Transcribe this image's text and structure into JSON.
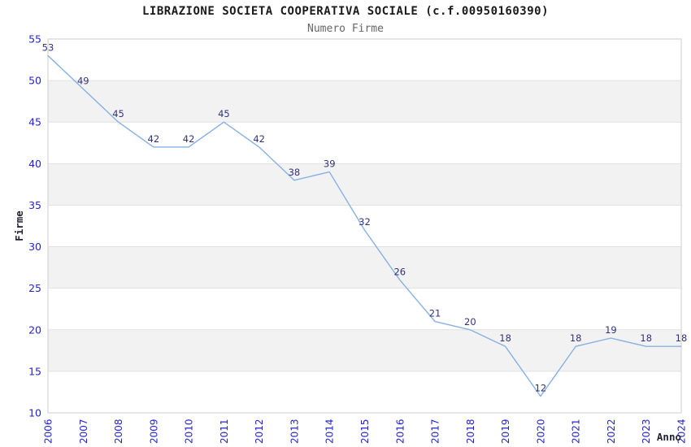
{
  "chart": {
    "title": "LIBRAZIONE SOCIETA COOPERATIVA SOCIALE (c.f.00950160390)",
    "subtitle": "Numero Firme",
    "x_axis_label": "Anno",
    "y_axis_label": "Firme"
  },
  "chart_data": {
    "type": "line",
    "title": "LIBRAZIONE SOCIETA COOPERATIVA SOCIALE (c.f.00950160390)",
    "subtitle": "Numero Firme",
    "xlabel": "Anno",
    "ylabel": "Firme",
    "categories": [
      "2006",
      "2007",
      "2008",
      "2009",
      "2010",
      "2011",
      "2012",
      "2013",
      "2014",
      "2015",
      "2016",
      "2017",
      "2018",
      "2019",
      "2020",
      "2021",
      "2022",
      "2023",
      "2024"
    ],
    "values": [
      53,
      49,
      45,
      42,
      42,
      45,
      42,
      38,
      39,
      32,
      26,
      21,
      20,
      18,
      12,
      18,
      19,
      18,
      18
    ],
    "ylim": [
      10,
      55
    ],
    "ytick_step": 5,
    "yticks": [
      10,
      15,
      20,
      25,
      30,
      35,
      40,
      45,
      50,
      55
    ],
    "grid": true,
    "alternating_bands": true,
    "legend": "none",
    "point_labels_visible": true,
    "colors": {
      "line": "#86b0e6",
      "tick_label": "#2323cc",
      "point_label": "#32327a",
      "band": "#f2f2f2",
      "grid": "#e1e1e1",
      "plot_border": "#d4d4d4",
      "title": "#1a1a1a",
      "subtitle": "#666666",
      "axis_title": "#222233"
    }
  }
}
